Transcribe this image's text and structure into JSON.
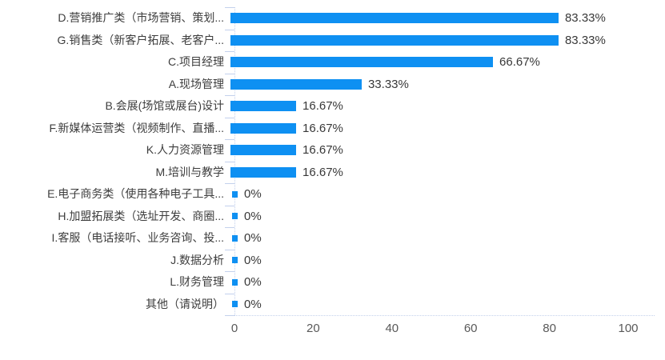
{
  "chart_data": {
    "type": "bar",
    "orientation": "horizontal",
    "title": "",
    "xlabel": "",
    "ylabel": "",
    "legend": false,
    "grid": false,
    "xlim": [
      0,
      100
    ],
    "x_ticks": [
      "0",
      "20",
      "40",
      "60",
      "80",
      "100"
    ],
    "categories": [
      "D.营销推广类（市场营销、策划...",
      "G.销售类（新客户拓展、老客户...",
      "C.项目经理",
      "A.现场管理",
      "B.会展(场馆或展台)设计",
      "F.新媒体运营类（视频制作、直播...",
      "K.人力资源管理",
      "M.培训与教学",
      "E.电子商务类（使用各种电子工具...",
      "H.加盟拓展类（选址开发、商圈...",
      "I.客服（电话接听、业务咨询、投...",
      "J.数据分析",
      "L.财务管理",
      "其他（请说明）"
    ],
    "values": [
      83.33,
      83.33,
      66.67,
      33.33,
      16.67,
      16.67,
      16.67,
      16.67,
      0,
      0,
      0,
      0,
      0,
      0
    ],
    "value_labels": [
      "83.33%",
      "83.33%",
      "66.67%",
      "33.33%",
      "16.67%",
      "16.67%",
      "16.67%",
      "16.67%",
      "0%",
      "0%",
      "0%",
      "0%",
      "0%",
      "0%"
    ],
    "colors": {
      "bar": "#0e90f2",
      "axis": "#c3d1ec",
      "category_label": "#3d3d3d",
      "value_label": "#383838",
      "tick_label": "#595959"
    }
  }
}
